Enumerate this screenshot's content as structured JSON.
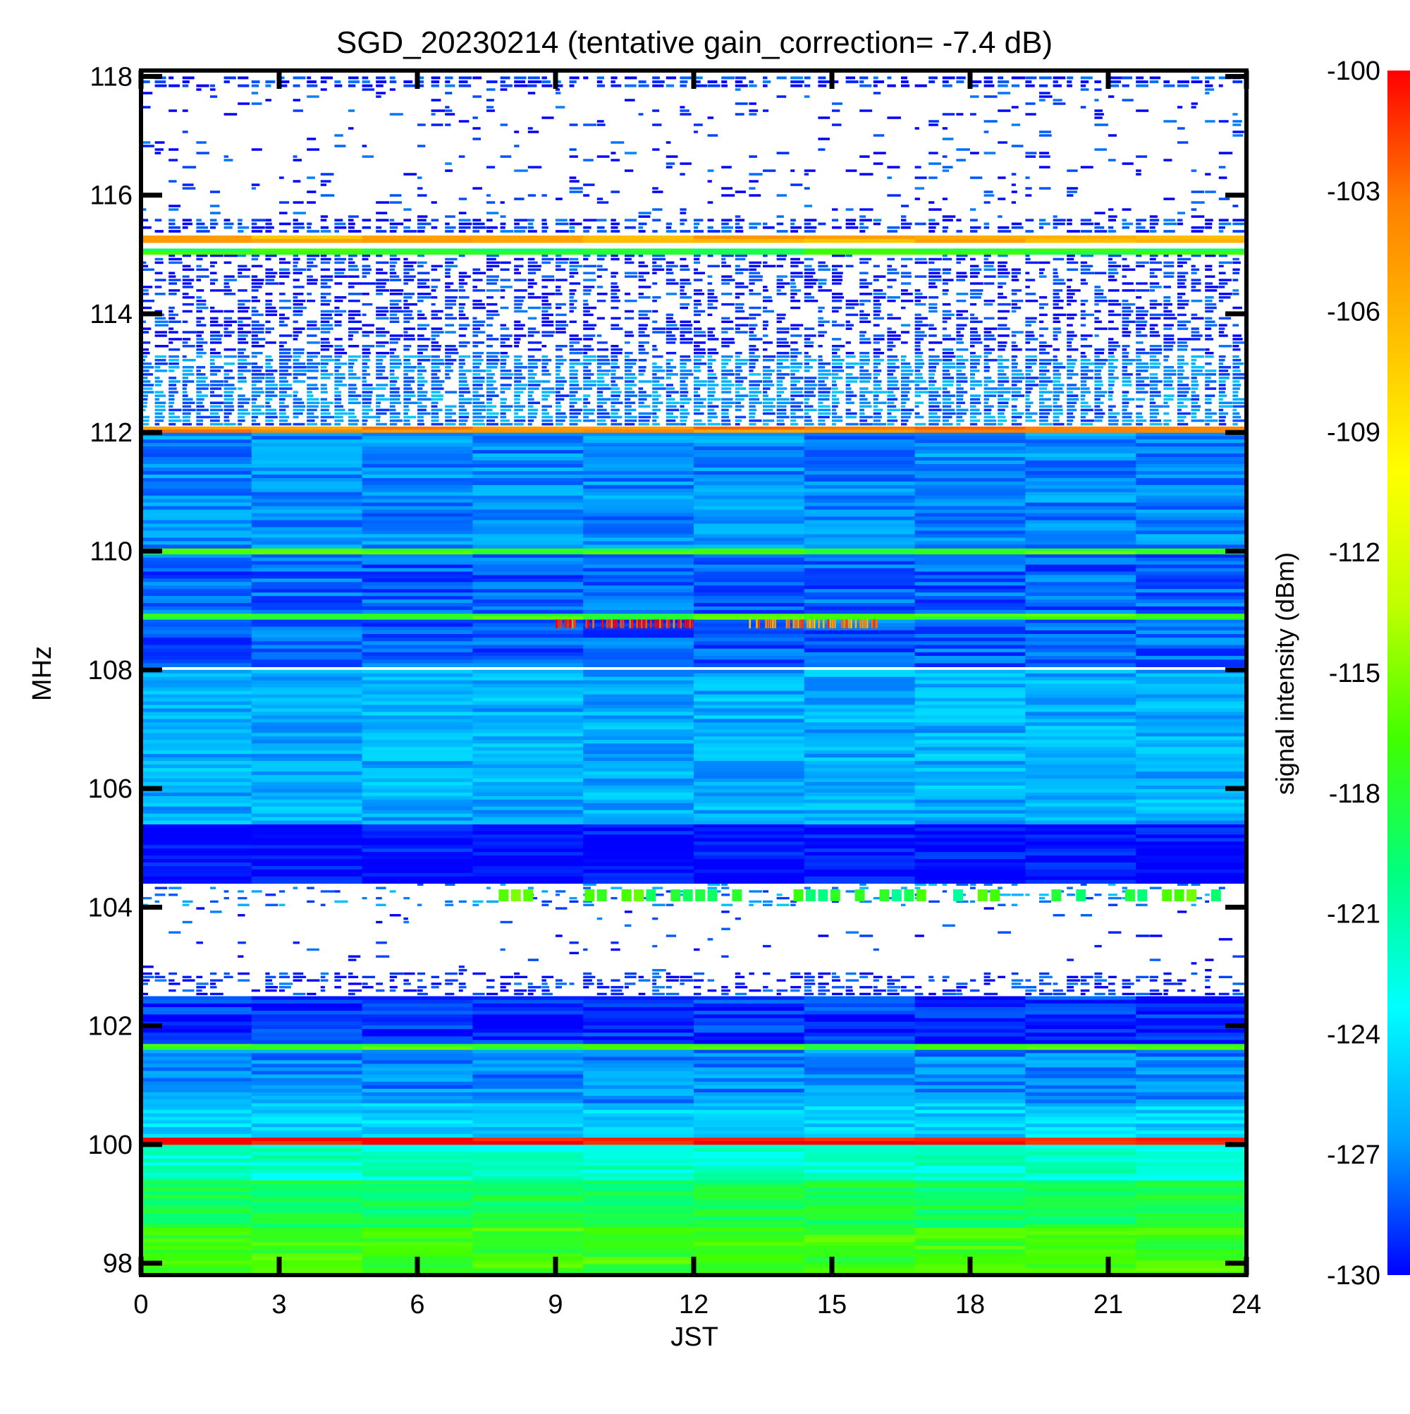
{
  "chart_data": {
    "type": "heatmap",
    "title": "SGD_20230214 (tentative gain_correction= -7.4 dB)",
    "xlabel": "JST",
    "ylabel": "MHz",
    "colorbar_label": "signal intensity (dBm)",
    "xlim": [
      0,
      24
    ],
    "ylim": [
      97.8,
      118.1
    ],
    "clim": [
      -130,
      -100
    ],
    "x_ticks": [
      0,
      3,
      6,
      9,
      12,
      15,
      18,
      21,
      24
    ],
    "x_tick_labels": [
      "0",
      "3",
      "6",
      "9",
      "12",
      "15",
      "18",
      "21",
      "24"
    ],
    "y_ticks": [
      98,
      100,
      102,
      104,
      106,
      108,
      110,
      112,
      114,
      116,
      118
    ],
    "y_tick_labels": [
      "98",
      "100",
      "102",
      "104",
      "106",
      "108",
      "110",
      "112",
      "114",
      "116",
      "118"
    ],
    "colorbar_ticks": [
      -100,
      -103,
      -106,
      -109,
      -112,
      -115,
      -118,
      -121,
      -124,
      -127,
      -130
    ],
    "colorbar_tick_labels": [
      "-100",
      "-103",
      "-106",
      "-109",
      "-112",
      "-115",
      "-118",
      "-121",
      "-124",
      "-127",
      "-130"
    ],
    "colormap": [
      "#0000ff",
      "#00a0ff",
      "#00ffff",
      "#00ff80",
      "#40ff00",
      "#c0ff00",
      "#ffff00",
      "#ffc000",
      "#ff8000",
      "#ff0000"
    ],
    "grid": false,
    "bands": [
      {
        "f1": 97.8,
        "f2": 98.6,
        "level": -117,
        "fill": 1.0
      },
      {
        "f1": 98.6,
        "f2": 99.4,
        "level": -119,
        "fill": 1.0
      },
      {
        "f1": 99.4,
        "f2": 100.0,
        "level": -122,
        "fill": 1.0
      },
      {
        "f1": 100.0,
        "f2": 100.12,
        "level": -100,
        "fill": 1.0
      },
      {
        "f1": 100.12,
        "f2": 100.7,
        "level": -125,
        "fill": 1.0
      },
      {
        "f1": 100.7,
        "f2": 101.6,
        "level": -127,
        "fill": 1.0
      },
      {
        "f1": 101.6,
        "f2": 101.7,
        "level": -117,
        "fill": 1.0
      },
      {
        "f1": 101.7,
        "f2": 102.5,
        "level": -129,
        "fill": 1.0
      },
      {
        "f1": 102.5,
        "f2": 102.9,
        "level": -130,
        "fill": 0.55
      },
      {
        "f1": 102.9,
        "f2": 104.0,
        "level": -130,
        "fill": 0.05
      },
      {
        "f1": 104.0,
        "f2": 104.4,
        "level": -128,
        "fill": 0.25
      },
      {
        "f1": 104.4,
        "f2": 105.4,
        "level": -130,
        "fill": 1.0
      },
      {
        "f1": 105.4,
        "f2": 108.0,
        "level": -126,
        "fill": 1.0
      },
      {
        "f1": 108.0,
        "f2": 108.05,
        "level": -130,
        "fill": 0.0
      },
      {
        "f1": 108.05,
        "f2": 108.85,
        "level": -128,
        "fill": 1.0
      },
      {
        "f1": 108.85,
        "f2": 108.95,
        "level": -117,
        "fill": 1.0
      },
      {
        "f1": 108.95,
        "f2": 109.95,
        "level": -128,
        "fill": 1.0
      },
      {
        "f1": 109.95,
        "f2": 110.05,
        "level": -117,
        "fill": 1.0
      },
      {
        "f1": 110.05,
        "f2": 112.0,
        "level": -127,
        "fill": 1.0
      },
      {
        "f1": 112.0,
        "f2": 112.1,
        "level": -104,
        "fill": 1.0
      },
      {
        "f1": 112.1,
        "f2": 113.3,
        "level": -128,
        "fill": 0.95
      },
      {
        "f1": 113.3,
        "f2": 115.0,
        "level": -130,
        "fill": 0.6
      },
      {
        "f1": 115.0,
        "f2": 115.1,
        "level": -118,
        "fill": 1.0
      },
      {
        "f1": 115.2,
        "f2": 115.32,
        "level": -106,
        "fill": 1.0
      },
      {
        "f1": 115.35,
        "f2": 115.6,
        "level": -130,
        "fill": 0.7
      },
      {
        "f1": 115.6,
        "f2": 117.8,
        "level": -130,
        "fill": 0.12
      },
      {
        "f1": 117.8,
        "f2": 118.0,
        "level": -130,
        "fill": 0.75
      }
    ],
    "annotations": [
      {
        "f1": 108.7,
        "f2": 108.85,
        "t1": 9.0,
        "t2": 12.0,
        "level": -101
      },
      {
        "f1": 108.7,
        "f2": 108.85,
        "t1": 13.0,
        "t2": 16.0,
        "level": -104
      },
      {
        "f1": 104.1,
        "f2": 104.3,
        "t1": 7.5,
        "t2": 23.5,
        "level": -118
      }
    ]
  }
}
